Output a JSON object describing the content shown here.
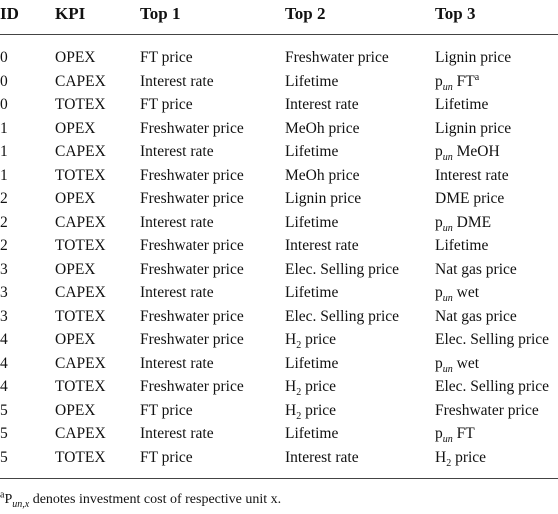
{
  "table": {
    "header": [
      "ID",
      "KPI",
      "Top 1",
      "Top 2",
      "Top 3"
    ],
    "rows": [
      [
        "0",
        "OPEX",
        "FT price",
        "Freshwater price",
        "Lignin price"
      ],
      [
        "0",
        "CAPEX",
        "Interest rate",
        "Lifetime",
        {
          "base": "p",
          "sub": "un",
          "rest": " FT",
          "sup": "a"
        }
      ],
      [
        "0",
        "TOTEX",
        "FT price",
        "Interest rate",
        "Lifetime"
      ],
      [
        "1",
        "OPEX",
        "Freshwater price",
        "MeOh price",
        "Lignin price"
      ],
      [
        "1",
        "CAPEX",
        "Interest rate",
        "Lifetime",
        {
          "base": "p",
          "sub": "un",
          "rest": " MeOH"
        }
      ],
      [
        "1",
        "TOTEX",
        "Freshwater price",
        "MeOh price",
        "Interest rate"
      ],
      [
        "2",
        "OPEX",
        "Freshwater price",
        "Lignin price",
        "DME price"
      ],
      [
        "2",
        "CAPEX",
        "Interest rate",
        "Lifetime",
        {
          "base": "p",
          "sub": "un",
          "rest": " DME"
        }
      ],
      [
        "2",
        "TOTEX",
        "Freshwater price",
        "Interest rate",
        "Lifetime"
      ],
      [
        "3",
        "OPEX",
        "Freshwater price",
        "Elec. Selling price",
        "Nat gas price"
      ],
      [
        "3",
        "CAPEX",
        "Interest rate",
        "Lifetime",
        {
          "base": "p",
          "sub": "un",
          "rest": " wet"
        }
      ],
      [
        "3",
        "TOTEX",
        "Freshwater price",
        "Elec. Selling price",
        "Nat gas price"
      ],
      [
        "4",
        "OPEX",
        "Freshwater price",
        {
          "base": "H",
          "sub": "2",
          "rest": " price"
        },
        "Elec. Selling price"
      ],
      [
        "4",
        "CAPEX",
        "Interest rate",
        "Lifetime",
        {
          "base": "p",
          "sub": "un",
          "rest": " wet"
        }
      ],
      [
        "4",
        "TOTEX",
        "Freshwater price",
        {
          "base": "H",
          "sub": "2",
          "rest": " price"
        },
        "Elec. Selling price"
      ],
      [
        "5",
        "OPEX",
        "FT price",
        {
          "base": "H",
          "sub": "2",
          "rest": " price"
        },
        "Freshwater price"
      ],
      [
        "5",
        "CAPEX",
        "Interest rate",
        "Lifetime",
        {
          "base": "p",
          "sub": "un",
          "rest": " FT"
        }
      ],
      [
        "5",
        "TOTEX",
        "FT price",
        "Interest rate",
        {
          "base": "H",
          "sub": "2",
          "rest": " price"
        }
      ]
    ],
    "footnote": {
      "sup": "a",
      "base": "P",
      "sub": "un,x",
      "rest": " denotes investment cost of respective unit x."
    }
  }
}
